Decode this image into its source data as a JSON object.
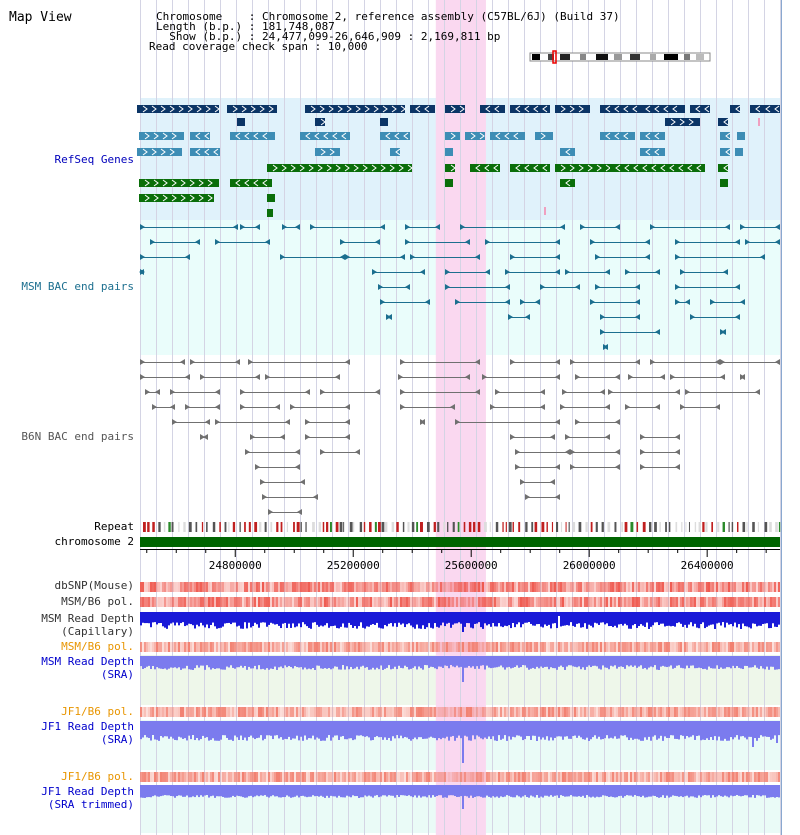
{
  "header": {
    "title": "Map View",
    "info_lines": [
      "Chromosome    : Chromosome 2, reference assembly (C57BL/6J) (Build 37)",
      "Length (b.p.) : 181,748,087",
      "  Show (b.p.) : 24,477,099-26,646,909 : 2,169,811 bp",
      "Read coverage check span : 10,000"
    ]
  },
  "tracks": {
    "refseq": "RefSeq Genes",
    "msm_bac": "MSM BAC end pairs",
    "b6n_bac": "B6N BAC end pairs",
    "repeat": "Repeat",
    "chromosome": "chromosome 2",
    "dbsnp": "dbSNP(Mouse)",
    "msm_b6_pol_1": "MSM/B6 pol.",
    "msm_depth_cap_1": "MSM Read Depth",
    "msm_depth_cap_2": "(Capillary)",
    "msm_b6_pol_2": "MSM/B6 pol.",
    "msm_depth_sra_1": "MSM Read Depth",
    "msm_depth_sra_2": "(SRA)",
    "jf1_b6_pol_1": "JF1/B6 pol.",
    "jf1_depth_sra_1": "JF1 Read Depth",
    "jf1_depth_sra_2": "(SRA)",
    "jf1_b6_pol_2": "JF1/B6 pol.",
    "jf1_depth_trim_1": "JF1 Read Depth",
    "jf1_depth_trim_2": "(SRA trimmed)"
  },
  "axis": {
    "view_start": 24477099,
    "view_end": 26646909,
    "highlight_start": 25480000,
    "highlight_end": 25650000,
    "ticks": [
      {
        "value": 24800000,
        "label": "24800000"
      },
      {
        "value": 25200000,
        "label": "25200000"
      },
      {
        "value": 25600000,
        "label": "25600000"
      },
      {
        "value": 26000000,
        "label": "26000000"
      },
      {
        "value": 26400000,
        "label": "26400000"
      }
    ]
  },
  "colors": {
    "refseq_bg": "#e0f2fb",
    "bac_bg": "#eafdfb",
    "highlight": "#fad8f0",
    "gene_dark": "#0b3566",
    "gene_mid": "#3d8db5",
    "gene_green": "#0a6e0a",
    "msm_bac": "#1c6f8f",
    "b6n_bac": "#707070",
    "chromosome": "#006400",
    "pol": "#ef5a50",
    "depth_cap": "#1a1ad8",
    "depth_sra": "#7b7bee",
    "msm_label": "#0000cc",
    "pol_label": "#e89500"
  }
}
